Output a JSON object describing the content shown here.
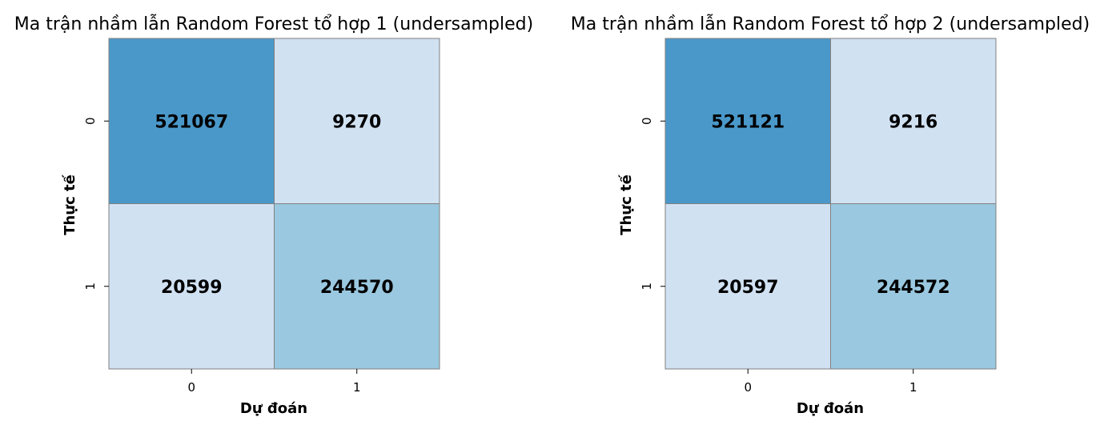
{
  "chart_data": [
    {
      "type": "heatmap",
      "title": "Ma trận nhầm lẫn Random Forest tổ hợp 1 (undersampled)",
      "xlabel": "Dự đoán",
      "ylabel": "Thực tế",
      "x_categories": [
        "0",
        "1"
      ],
      "y_categories": [
        "0",
        "1"
      ],
      "values": [
        [
          521067,
          9270
        ],
        [
          20599,
          244570
        ]
      ],
      "cell_colors": [
        [
          "#4a98c9",
          "#d0e1f2"
        ],
        [
          "#d0e1f2",
          "#9ac8e0"
        ]
      ],
      "colorbar": false
    },
    {
      "type": "heatmap",
      "title": "Ma trận nhầm lẫn Random Forest tổ hợp 2 (undersampled)",
      "xlabel": "Dự đoán",
      "ylabel": "Thực tế",
      "x_categories": [
        "0",
        "1"
      ],
      "y_categories": [
        "0",
        "1"
      ],
      "values": [
        [
          521121,
          9216
        ],
        [
          20597,
          244572
        ]
      ],
      "cell_colors": [
        [
          "#4a98c9",
          "#d0e1f2"
        ],
        [
          "#d0e1f2",
          "#9ac8e0"
        ]
      ],
      "colorbar": false
    }
  ],
  "colors": {
    "cell_border": "#808080",
    "axis": "#000000"
  }
}
